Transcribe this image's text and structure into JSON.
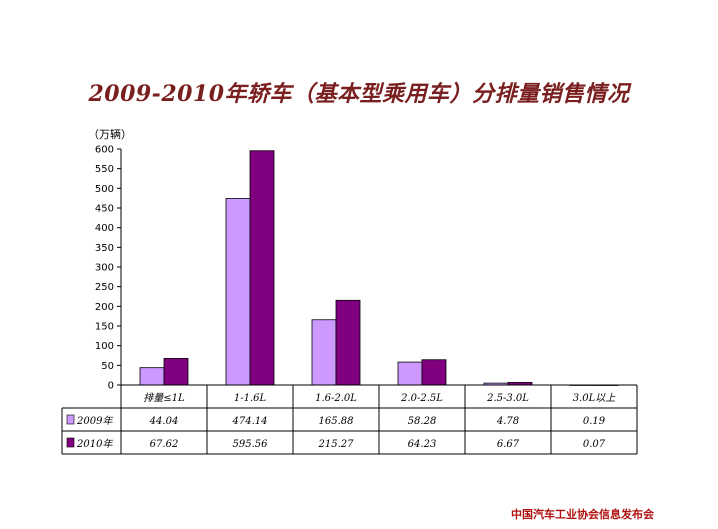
{
  "chart_data": {
    "type": "bar",
    "title": "2009-2010年轿车（基本型乘用车）分排量销售情况",
    "ylabel": "（万辆）",
    "ylim": [
      0,
      600
    ],
    "yticks": [
      0,
      50,
      100,
      150,
      200,
      250,
      300,
      350,
      400,
      450,
      500,
      550,
      600
    ],
    "categories": [
      "排量≤1L",
      "1-1.6L",
      "1.6-2.0L",
      "2.0-2.5L",
      "2.5-3.0L",
      "3.0L以上"
    ],
    "series": [
      {
        "name": "2009年",
        "color": "#cc99ff",
        "values": [
          44.04,
          474.14,
          165.88,
          58.28,
          4.78,
          0.19
        ],
        "labels": [
          "44.04",
          "474.14",
          "165.88",
          "58.28",
          "4.78",
          "0.19"
        ]
      },
      {
        "name": "2010年",
        "color": "#800080",
        "values": [
          67.62,
          595.56,
          215.27,
          64.23,
          6.67,
          0.07
        ],
        "labels": [
          "67.62",
          "595.56",
          "215.27",
          "64.23",
          "6.67",
          "0.07"
        ]
      }
    ],
    "grid": false,
    "data_table": true
  },
  "footer": "中国汽车工业协会信息发布会"
}
